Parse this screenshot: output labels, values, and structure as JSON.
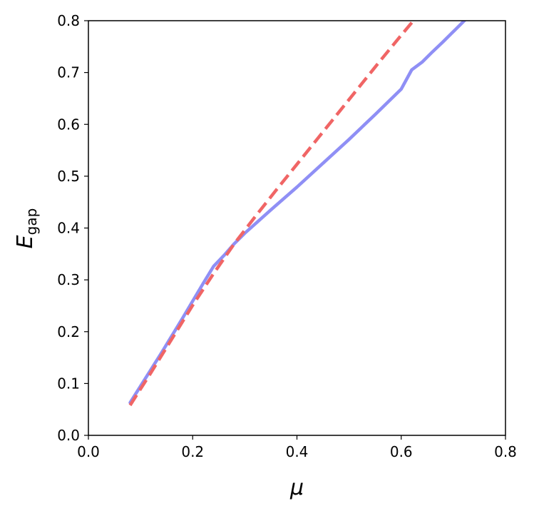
{
  "chart_data": {
    "type": "line",
    "title": "",
    "xlabel": "μ",
    "ylabel": "E",
    "ylabel_subscript": "gap",
    "xlim": [
      0.0,
      0.8
    ],
    "ylim": [
      0.0,
      0.8
    ],
    "xticks": [
      0.0,
      0.2,
      0.4,
      0.6,
      0.8
    ],
    "yticks": [
      0.0,
      0.1,
      0.2,
      0.3,
      0.4,
      0.5,
      0.6,
      0.7,
      0.8
    ],
    "xtick_labels": [
      "0.0",
      "0.2",
      "0.4",
      "0.6",
      "0.8"
    ],
    "ytick_labels": [
      "0.0",
      "0.1",
      "0.2",
      "0.3",
      "0.4",
      "0.5",
      "0.6",
      "0.7",
      "0.8"
    ],
    "grid": false,
    "legend": false,
    "series": [
      {
        "color": "#8f8ff5",
        "style": "solid",
        "x": [
          0.08,
          0.1,
          0.12,
          0.14,
          0.16,
          0.18,
          0.2,
          0.22,
          0.24,
          0.26,
          0.28,
          0.3,
          0.32,
          0.35,
          0.4,
          0.45,
          0.5,
          0.55,
          0.6,
          0.62,
          0.64,
          0.66,
          0.68,
          0.7,
          0.72,
          0.725
        ],
        "y": [
          0.063,
          0.095,
          0.127,
          0.159,
          0.192,
          0.225,
          0.259,
          0.293,
          0.326,
          0.347,
          0.37,
          0.39,
          0.408,
          0.435,
          0.479,
          0.525,
          0.571,
          0.619,
          0.668,
          0.705,
          0.72,
          0.74,
          0.759,
          0.779,
          0.799,
          0.804
        ]
      },
      {
        "color": "#f06565",
        "style": "dashed",
        "x": [
          0.08,
          0.12,
          0.16,
          0.2,
          0.24,
          0.28,
          0.32,
          0.36,
          0.4,
          0.44,
          0.48,
          0.52,
          0.56,
          0.6,
          0.64,
          0.655
        ],
        "y": [
          0.058,
          0.121,
          0.186,
          0.251,
          0.312,
          0.37,
          0.422,
          0.473,
          0.523,
          0.573,
          0.623,
          0.673,
          0.723,
          0.772,
          0.82,
          0.838
        ]
      }
    ]
  }
}
